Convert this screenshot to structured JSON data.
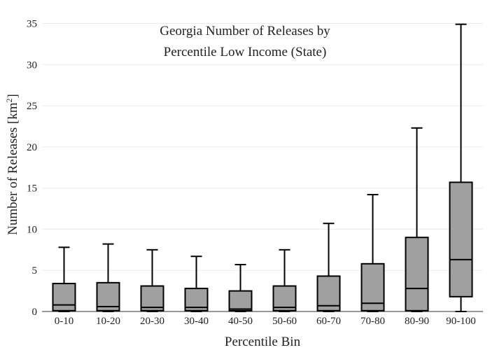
{
  "chart_data": {
    "type": "box",
    "title_lines": [
      "Georgia Number of Releases by",
      "Percentile Low Income (State)"
    ],
    "xlabel": "Percentile Bin",
    "ylabel_main": "Number of Releases  [km",
    "ylabel_sup": "2",
    "ylabel_close": "]",
    "ylim": [
      0,
      37
    ],
    "yticks": [
      0,
      5,
      10,
      15,
      20,
      25,
      30,
      35
    ],
    "grid": true,
    "categories": [
      "0-10",
      "10-20",
      "20-30",
      "30-40",
      "40-50",
      "50-60",
      "60-70",
      "70-80",
      "80-90",
      "90-100"
    ],
    "boxes": [
      {
        "min": 0,
        "q1": 0.1,
        "median": 0.8,
        "q3": 3.4,
        "max": 7.8
      },
      {
        "min": 0,
        "q1": 0.1,
        "median": 0.6,
        "q3": 3.5,
        "max": 8.2
      },
      {
        "min": 0,
        "q1": 0.1,
        "median": 0.5,
        "q3": 3.1,
        "max": 7.5
      },
      {
        "min": 0,
        "q1": 0.1,
        "median": 0.5,
        "q3": 2.8,
        "max": 6.7
      },
      {
        "min": 0,
        "q1": 0.1,
        "median": 0.3,
        "q3": 2.5,
        "max": 5.7
      },
      {
        "min": 0,
        "q1": 0.1,
        "median": 0.5,
        "q3": 3.1,
        "max": 7.5
      },
      {
        "min": 0,
        "q1": 0.1,
        "median": 0.7,
        "q3": 4.3,
        "max": 10.7
      },
      {
        "min": 0,
        "q1": 0.1,
        "median": 1.0,
        "q3": 5.8,
        "max": 14.2
      },
      {
        "min": 0,
        "q1": 0.1,
        "median": 2.8,
        "q3": 9.0,
        "max": 22.3
      },
      {
        "min": 0,
        "q1": 1.8,
        "median": 6.3,
        "q3": 15.7,
        "max": 34.9
      }
    ]
  }
}
